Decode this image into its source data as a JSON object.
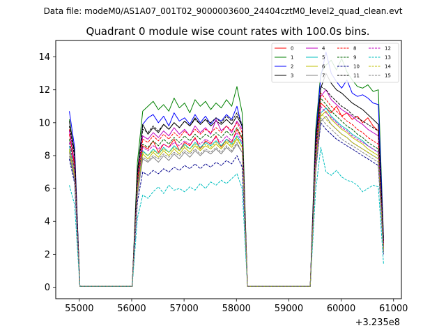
{
  "chart_data": {
    "type": "line",
    "suptitle": "Data file: modeM0/AS1A07_001T02_9000003600_24404cztM0_level2_quad_clean.evt",
    "title": "Quadrant 0 module wise count rates with 100.0s bins.",
    "xlabel": "",
    "ylabel": "",
    "x_offset_label": "+3.235e8",
    "xlim": [
      54550,
      61150
    ],
    "ylim": [
      -0.7,
      15.0
    ],
    "x_ticks": [
      55000,
      56000,
      57000,
      58000,
      59000,
      60000,
      61000
    ],
    "x_tick_labels": [
      "55000",
      "56000",
      "57000",
      "58000",
      "59000",
      "60000",
      "61000"
    ],
    "y_ticks": [
      0,
      2,
      4,
      6,
      8,
      10,
      12,
      14
    ],
    "y_tick_labels": [
      "0",
      "2",
      "4",
      "6",
      "8",
      "10",
      "12",
      "14"
    ],
    "legend_position": "upper right",
    "legend_columns": 4,
    "x": [
      54810,
      54910,
      55010,
      55110,
      55210,
      55310,
      55410,
      55510,
      55610,
      55710,
      55810,
      55910,
      56010,
      56110,
      56210,
      56310,
      56410,
      56510,
      56610,
      56710,
      56810,
      56910,
      57010,
      57110,
      57210,
      57310,
      57410,
      57510,
      57610,
      57710,
      57810,
      57910,
      58010,
      58110,
      58210,
      58310,
      58410,
      58510,
      58610,
      58710,
      58810,
      58910,
      59010,
      59110,
      59210,
      59310,
      59410,
      59510,
      59610,
      59710,
      59810,
      59910,
      60010,
      60110,
      60210,
      60310,
      60410,
      60510,
      60610,
      60710,
      60810
    ],
    "series": [
      {
        "name": "0",
        "color": "#ff0000",
        "dash": false,
        "values": [
          9.6,
          7.4,
          0.05,
          0.05,
          0.05,
          0.05,
          0.05,
          0.05,
          0.05,
          0.05,
          0.05,
          0.05,
          0.05,
          6.1,
          8.6,
          8.4,
          8.9,
          8.2,
          8.7,
          8.5,
          9.0,
          8.3,
          8.8,
          8.6,
          9.1,
          8.4,
          8.9,
          8.7,
          9.2,
          8.5,
          9.0,
          8.8,
          9.6,
          9.0,
          0.05,
          0.05,
          0.05,
          0.05,
          0.05,
          0.05,
          0.05,
          0.05,
          0.05,
          0.05,
          0.05,
          0.05,
          0.05,
          7.5,
          11.2,
          10.9,
          10.6,
          11.0,
          10.4,
          10.6,
          10.2,
          10.4,
          10.0,
          10.3,
          9.8,
          9.5,
          2.6
        ]
      },
      {
        "name": "1",
        "color": "#008000",
        "dash": false,
        "values": [
          10.2,
          8.1,
          0.05,
          0.05,
          0.05,
          0.05,
          0.05,
          0.05,
          0.05,
          0.05,
          0.05,
          0.05,
          0.05,
          7.6,
          10.7,
          11.0,
          11.3,
          10.8,
          11.1,
          10.7,
          11.5,
          10.9,
          11.2,
          10.6,
          11.4,
          11.0,
          11.3,
          10.8,
          11.2,
          10.9,
          11.4,
          11.0,
          12.2,
          10.6,
          0.05,
          0.05,
          0.05,
          0.05,
          0.05,
          0.05,
          0.05,
          0.05,
          0.05,
          0.05,
          0.05,
          0.05,
          0.05,
          9.5,
          13.0,
          13.5,
          13.8,
          13.2,
          13.9,
          13.1,
          12.6,
          12.2,
          12.1,
          12.3,
          11.9,
          12.0,
          3.0
        ]
      },
      {
        "name": "2",
        "color": "#0000ff",
        "dash": false,
        "values": [
          10.7,
          8.5,
          0.05,
          0.05,
          0.05,
          0.05,
          0.05,
          0.05,
          0.05,
          0.05,
          0.05,
          0.05,
          0.05,
          7.0,
          9.9,
          10.3,
          10.5,
          10.0,
          10.4,
          9.8,
          10.6,
          10.1,
          10.3,
          9.9,
          10.5,
          10.0,
          10.4,
          9.9,
          10.3,
          10.1,
          10.5,
          10.2,
          11.0,
          9.7,
          0.05,
          0.05,
          0.05,
          0.05,
          0.05,
          0.05,
          0.05,
          0.05,
          0.05,
          0.05,
          0.05,
          0.05,
          0.05,
          9.0,
          12.8,
          14.3,
          13.0,
          12.5,
          12.1,
          12.6,
          11.8,
          11.6,
          11.7,
          11.5,
          11.2,
          11.1,
          2.9
        ]
      },
      {
        "name": "3",
        "color": "#000000",
        "dash": false,
        "values": [
          10.1,
          8.2,
          0.05,
          0.05,
          0.05,
          0.05,
          0.05,
          0.05,
          0.05,
          0.05,
          0.05,
          0.05,
          0.05,
          7.0,
          9.9,
          9.3,
          9.7,
          9.4,
          9.9,
          9.6,
          10.0,
          9.7,
          10.1,
          9.8,
          10.3,
          9.9,
          10.2,
          9.8,
          10.1,
          9.9,
          10.2,
          9.9,
          10.4,
          9.8,
          0.05,
          0.05,
          0.05,
          0.05,
          0.05,
          0.05,
          0.05,
          0.05,
          0.05,
          0.05,
          0.05,
          0.05,
          0.05,
          8.8,
          12.1,
          13.0,
          12.4,
          12.0,
          11.8,
          11.5,
          11.2,
          11.0,
          10.8,
          10.5,
          10.2,
          9.9,
          2.8
        ]
      },
      {
        "name": "4",
        "color": "#c000c0",
        "dash": false,
        "values": [
          9.5,
          7.6,
          0.05,
          0.05,
          0.05,
          0.05,
          0.05,
          0.05,
          0.05,
          0.05,
          0.05,
          0.05,
          0.05,
          6.6,
          9.2,
          9.0,
          9.4,
          9.1,
          9.5,
          9.2,
          9.7,
          9.3,
          9.6,
          9.2,
          9.8,
          9.4,
          9.7,
          9.3,
          10.2,
          9.5,
          9.8,
          9.4,
          10.1,
          9.6,
          0.05,
          0.05,
          0.05,
          0.05,
          0.05,
          0.05,
          0.05,
          0.05,
          0.05,
          0.05,
          0.05,
          0.05,
          0.05,
          8.4,
          11.6,
          12.0,
          11.4,
          11.1,
          10.8,
          10.6,
          10.4,
          10.1,
          9.9,
          9.6,
          9.4,
          9.2,
          2.7
        ]
      },
      {
        "name": "5",
        "color": "#00bfbf",
        "dash": false,
        "values": [
          8.6,
          6.9,
          0.05,
          0.05,
          0.05,
          0.05,
          0.05,
          0.05,
          0.05,
          0.05,
          0.05,
          0.05,
          0.05,
          6.0,
          8.3,
          8.0,
          8.4,
          8.1,
          8.5,
          8.2,
          8.6,
          8.3,
          8.7,
          8.4,
          8.8,
          8.5,
          8.8,
          8.6,
          8.9,
          8.6,
          9.0,
          8.7,
          9.2,
          8.7,
          0.05,
          0.05,
          0.05,
          0.05,
          0.05,
          0.05,
          0.05,
          0.05,
          0.05,
          0.05,
          0.05,
          0.05,
          0.05,
          7.4,
          10.6,
          10.9,
          10.4,
          10.1,
          9.8,
          9.6,
          9.3,
          9.1,
          8.9,
          8.6,
          8.4,
          8.2,
          2.4
        ]
      },
      {
        "name": "6",
        "color": "#bfbf00",
        "dash": false,
        "values": [
          8.3,
          6.7,
          0.05,
          0.05,
          0.05,
          0.05,
          0.05,
          0.05,
          0.05,
          0.05,
          0.05,
          0.05,
          0.05,
          5.8,
          8.1,
          7.8,
          8.2,
          7.9,
          8.3,
          8.0,
          8.4,
          8.1,
          8.5,
          8.2,
          8.6,
          8.3,
          8.6,
          8.4,
          8.7,
          8.4,
          8.8,
          8.5,
          9.0,
          8.5,
          0.05,
          0.05,
          0.05,
          0.05,
          0.05,
          0.05,
          0.05,
          0.05,
          0.05,
          0.05,
          0.05,
          0.05,
          0.05,
          7.2,
          10.4,
          10.7,
          10.2,
          9.9,
          9.6,
          9.4,
          9.1,
          8.9,
          8.7,
          8.4,
          8.2,
          8.0,
          2.3
        ]
      },
      {
        "name": "7",
        "color": "#808080",
        "dash": false,
        "values": [
          8.0,
          6.5,
          0.05,
          0.05,
          0.05,
          0.05,
          0.05,
          0.05,
          0.05,
          0.05,
          0.05,
          0.05,
          0.05,
          5.6,
          7.8,
          7.6,
          7.9,
          7.6,
          8.0,
          7.7,
          8.1,
          7.8,
          8.2,
          7.9,
          8.3,
          8.0,
          8.3,
          8.1,
          8.4,
          8.1,
          8.5,
          8.2,
          8.7,
          8.2,
          0.05,
          0.05,
          0.05,
          0.05,
          0.05,
          0.05,
          0.05,
          0.05,
          0.05,
          0.05,
          0.05,
          0.05,
          0.05,
          7.0,
          10.1,
          10.4,
          9.9,
          9.6,
          9.3,
          9.1,
          8.8,
          8.6,
          8.4,
          8.2,
          8.0,
          7.8,
          2.2
        ]
      },
      {
        "name": "8",
        "color": "#ff0000",
        "dash": true,
        "values": [
          9.3,
          7.3,
          0.05,
          0.05,
          0.05,
          0.05,
          0.05,
          0.05,
          0.05,
          0.05,
          0.05,
          0.05,
          0.05,
          6.5,
          9.0,
          8.8,
          9.2,
          8.9,
          9.3,
          9.0,
          9.4,
          9.1,
          9.5,
          9.2,
          9.6,
          9.3,
          9.6,
          9.4,
          9.7,
          9.4,
          9.8,
          9.5,
          10.0,
          9.4,
          0.05,
          0.05,
          0.05,
          0.05,
          0.05,
          0.05,
          0.05,
          0.05,
          0.05,
          0.05,
          0.05,
          0.05,
          0.05,
          8.2,
          11.8,
          11.4,
          11.0,
          10.7,
          10.4,
          10.1,
          9.9,
          9.6,
          9.4,
          9.1,
          8.9,
          8.7,
          2.5
        ]
      },
      {
        "name": "9",
        "color": "#006400",
        "dash": true,
        "values": [
          9.0,
          7.1,
          0.05,
          0.05,
          0.05,
          0.05,
          0.05,
          0.05,
          0.05,
          0.05,
          0.05,
          0.05,
          0.05,
          6.3,
          8.7,
          8.5,
          8.9,
          8.6,
          9.0,
          8.7,
          9.1,
          8.8,
          9.2,
          8.9,
          9.3,
          9.0,
          9.3,
          9.1,
          9.4,
          9.1,
          9.5,
          9.2,
          9.7,
          9.1,
          0.05,
          0.05,
          0.05,
          0.05,
          0.05,
          0.05,
          0.05,
          0.05,
          0.05,
          0.05,
          0.05,
          0.05,
          0.05,
          7.9,
          11.5,
          11.1,
          10.7,
          10.4,
          10.1,
          9.8,
          9.6,
          9.3,
          9.1,
          8.8,
          8.6,
          8.4,
          2.4
        ]
      },
      {
        "name": "10",
        "color": "#00008b",
        "dash": true,
        "values": [
          7.8,
          6.3,
          0.05,
          0.05,
          0.05,
          0.05,
          0.05,
          0.05,
          0.05,
          0.05,
          0.05,
          0.05,
          0.05,
          5.2,
          7.0,
          6.8,
          7.1,
          6.9,
          7.2,
          7.0,
          7.3,
          7.1,
          7.4,
          7.2,
          7.5,
          7.2,
          7.5,
          7.3,
          7.6,
          7.4,
          7.7,
          7.5,
          8.0,
          7.3,
          0.05,
          0.05,
          0.05,
          0.05,
          0.05,
          0.05,
          0.05,
          0.05,
          0.05,
          0.05,
          0.05,
          0.05,
          0.05,
          7.0,
          10.0,
          9.6,
          9.3,
          9.0,
          8.8,
          8.6,
          8.4,
          8.2,
          8.0,
          7.8,
          7.6,
          7.4,
          2.0
        ]
      },
      {
        "name": "11",
        "color": "#000000",
        "dash": true,
        "values": [
          9.8,
          7.9,
          0.05,
          0.05,
          0.05,
          0.05,
          0.05,
          0.05,
          0.05,
          0.05,
          0.05,
          0.05,
          0.05,
          6.8,
          9.6,
          9.4,
          9.8,
          9.5,
          9.9,
          9.6,
          10.0,
          9.7,
          10.1,
          9.8,
          10.2,
          9.9,
          10.2,
          10.0,
          10.3,
          10.0,
          10.4,
          10.1,
          10.6,
          9.9,
          0.05,
          0.05,
          0.05,
          0.05,
          0.05,
          0.05,
          0.05,
          0.05,
          0.05,
          0.05,
          0.05,
          0.05,
          0.05,
          8.6,
          12.2,
          12.0,
          11.6,
          11.3,
          11.0,
          10.8,
          10.5,
          10.3,
          10.1,
          9.9,
          9.7,
          9.5,
          2.7
        ]
      },
      {
        "name": "12",
        "color": "#c000c0",
        "dash": true,
        "values": [
          8.8,
          7.0,
          0.05,
          0.05,
          0.05,
          0.05,
          0.05,
          0.05,
          0.05,
          0.05,
          0.05,
          0.05,
          0.05,
          6.1,
          8.5,
          8.3,
          8.6,
          8.4,
          8.7,
          8.5,
          8.8,
          8.6,
          8.9,
          8.7,
          9.0,
          8.7,
          9.0,
          8.8,
          9.1,
          8.8,
          9.2,
          8.9,
          9.4,
          8.8,
          0.05,
          0.05,
          0.05,
          0.05,
          0.05,
          0.05,
          0.05,
          0.05,
          0.05,
          0.05,
          0.05,
          0.05,
          0.05,
          7.6,
          11.0,
          10.6,
          10.3,
          10.0,
          9.7,
          9.5,
          9.2,
          9.0,
          8.8,
          8.6,
          8.4,
          8.2,
          2.3
        ]
      },
      {
        "name": "13",
        "color": "#00bfbf",
        "dash": true,
        "values": [
          6.2,
          5.0,
          0.05,
          0.05,
          0.05,
          0.05,
          0.05,
          0.05,
          0.05,
          0.05,
          0.05,
          0.05,
          0.05,
          4.2,
          5.6,
          5.4,
          5.8,
          6.1,
          5.7,
          6.2,
          5.9,
          6.0,
          5.8,
          6.1,
          5.9,
          6.3,
          6.0,
          6.4,
          6.2,
          6.5,
          6.3,
          6.6,
          6.9,
          6.0,
          0.05,
          0.05,
          0.05,
          0.05,
          0.05,
          0.05,
          0.05,
          0.05,
          0.05,
          0.05,
          0.05,
          0.05,
          0.05,
          5.8,
          8.5,
          7.0,
          6.8,
          7.1,
          6.7,
          6.5,
          6.4,
          6.2,
          5.8,
          6.0,
          6.2,
          6.1,
          1.4
        ]
      },
      {
        "name": "14",
        "color": "#bfbf00",
        "dash": true,
        "values": [
          8.4,
          6.8,
          0.05,
          0.05,
          0.05,
          0.05,
          0.05,
          0.05,
          0.05,
          0.05,
          0.05,
          0.05,
          0.05,
          5.9,
          8.2,
          8.0,
          8.3,
          8.1,
          8.4,
          8.2,
          8.5,
          8.3,
          8.6,
          8.4,
          8.7,
          8.4,
          8.7,
          8.5,
          8.8,
          8.5,
          8.9,
          8.6,
          9.1,
          8.5,
          0.05,
          0.05,
          0.05,
          0.05,
          0.05,
          0.05,
          0.05,
          0.05,
          0.05,
          0.05,
          0.05,
          0.05,
          0.05,
          7.3,
          10.6,
          10.2,
          9.9,
          9.6,
          9.3,
          9.1,
          8.8,
          8.6,
          8.4,
          8.2,
          8.0,
          7.8,
          2.2
        ]
      },
      {
        "name": "15",
        "color": "#808080",
        "dash": true,
        "values": [
          8.2,
          6.6,
          0.05,
          0.05,
          0.05,
          0.05,
          0.05,
          0.05,
          0.05,
          0.05,
          0.05,
          0.05,
          0.05,
          5.7,
          7.9,
          7.7,
          8.0,
          7.8,
          8.1,
          7.9,
          8.2,
          8.0,
          8.3,
          8.1,
          8.4,
          8.1,
          8.4,
          8.2,
          8.5,
          8.2,
          8.6,
          8.3,
          8.8,
          8.2,
          0.05,
          0.05,
          0.05,
          0.05,
          0.05,
          0.05,
          0.05,
          0.05,
          0.05,
          0.05,
          0.05,
          0.05,
          0.05,
          7.1,
          10.3,
          9.9,
          9.6,
          9.3,
          9.0,
          8.8,
          8.6,
          8.4,
          8.2,
          8.0,
          7.8,
          7.6,
          2.1
        ]
      }
    ]
  }
}
